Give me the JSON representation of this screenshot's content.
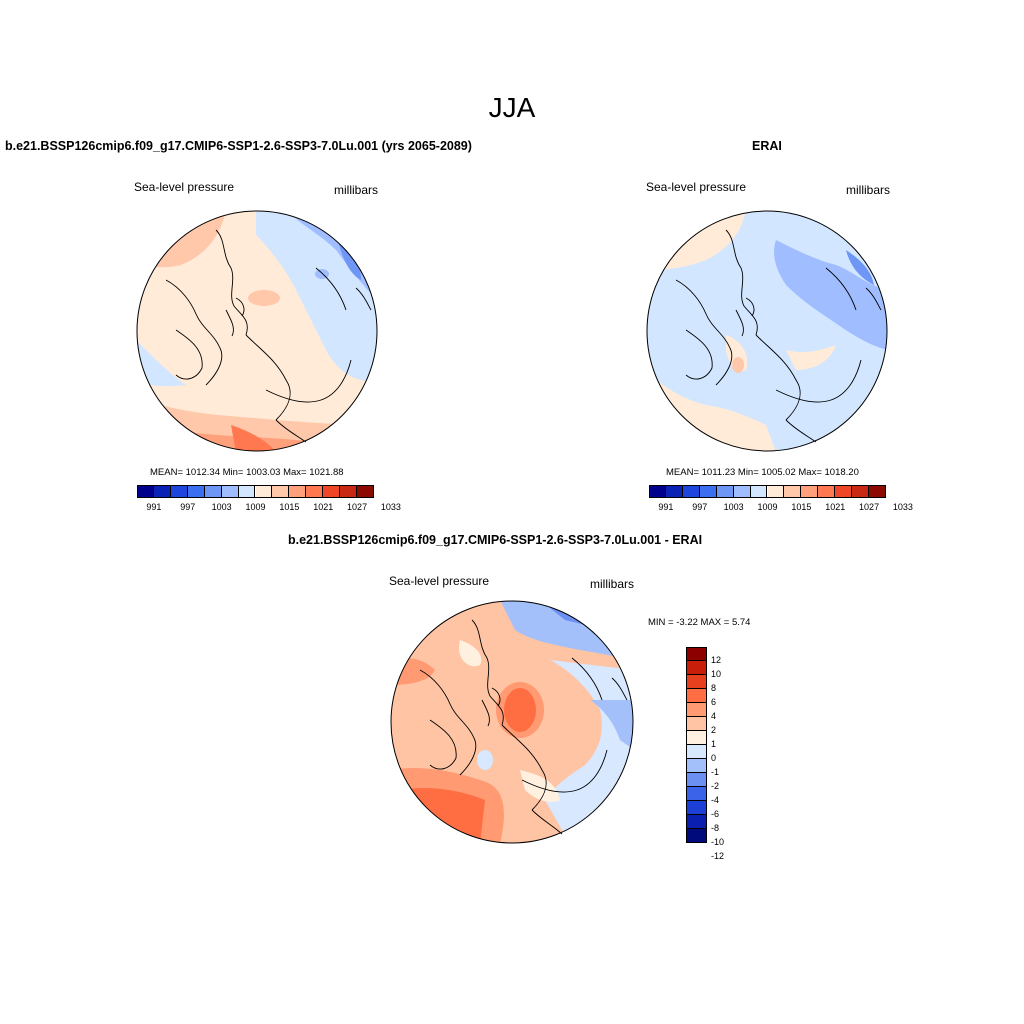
{
  "page": {
    "title": "JJA",
    "diff_title": "b.e21.BSSP126cmip6.f09_g17.CMIP6-SSP1-2.6-SSP3-7.0Lu.001 - ERAI"
  },
  "colors": {
    "sequential": [
      "#00008c",
      "#0a23b4",
      "#1e46dc",
      "#3c6ef0",
      "#6e96f5",
      "#a0beff",
      "#d2e6ff",
      "#ffebd7",
      "#ffc8aa",
      "#ffa07d",
      "#ff7850",
      "#f04628",
      "#c82814",
      "#8c0a00"
    ],
    "diff_scale": [
      "#000a7a",
      "#0a1fb0",
      "#1c3fd6",
      "#3a63ea",
      "#6b90f2",
      "#a4c0fb",
      "#d8e8ff",
      "#fff0e0",
      "#ffc4a4",
      "#ff9a72",
      "#ff6e42",
      "#e6401e",
      "#c81e0a",
      "#8c0000"
    ]
  },
  "panels": [
    {
      "name": "model",
      "title": "b.e21.BSSP126cmip6.f09_g17.CMIP6-SSP1-2.6-SSP3-7.0Lu.001 (yrs 2065-2089)",
      "left_label": "Sea-level pressure",
      "right_label": "millibars",
      "stats": "MEAN= 1012.34  Min= 1003.03  Max= 1021.88",
      "ticks": [
        "991",
        "997",
        "1003",
        "1009",
        "1015",
        "1021",
        "1027",
        "1033"
      ]
    },
    {
      "name": "obs",
      "title": "ERAI",
      "left_label": "Sea-level pressure",
      "right_label": "millibars",
      "stats": "MEAN= 1011.23  Min= 1005.02  Max= 1018.20",
      "ticks": [
        "991",
        "997",
        "1003",
        "1009",
        "1015",
        "1021",
        "1027",
        "1033"
      ]
    },
    {
      "name": "diff",
      "title": "b.e21.BSSP126cmip6.f09_g17.CMIP6-SSP1-2.6-SSP3-7.0Lu.001 - ERAI",
      "left_label": "Sea-level pressure",
      "right_label": "millibars",
      "stats": "MIN =  -3.22 MAX =   5.74",
      "ticks": [
        "12",
        "10",
        "8",
        "6",
        "4",
        "2",
        "1",
        "0",
        "-1",
        "-2",
        "-4",
        "-6",
        "-8",
        "-10",
        "-12"
      ]
    }
  ]
}
